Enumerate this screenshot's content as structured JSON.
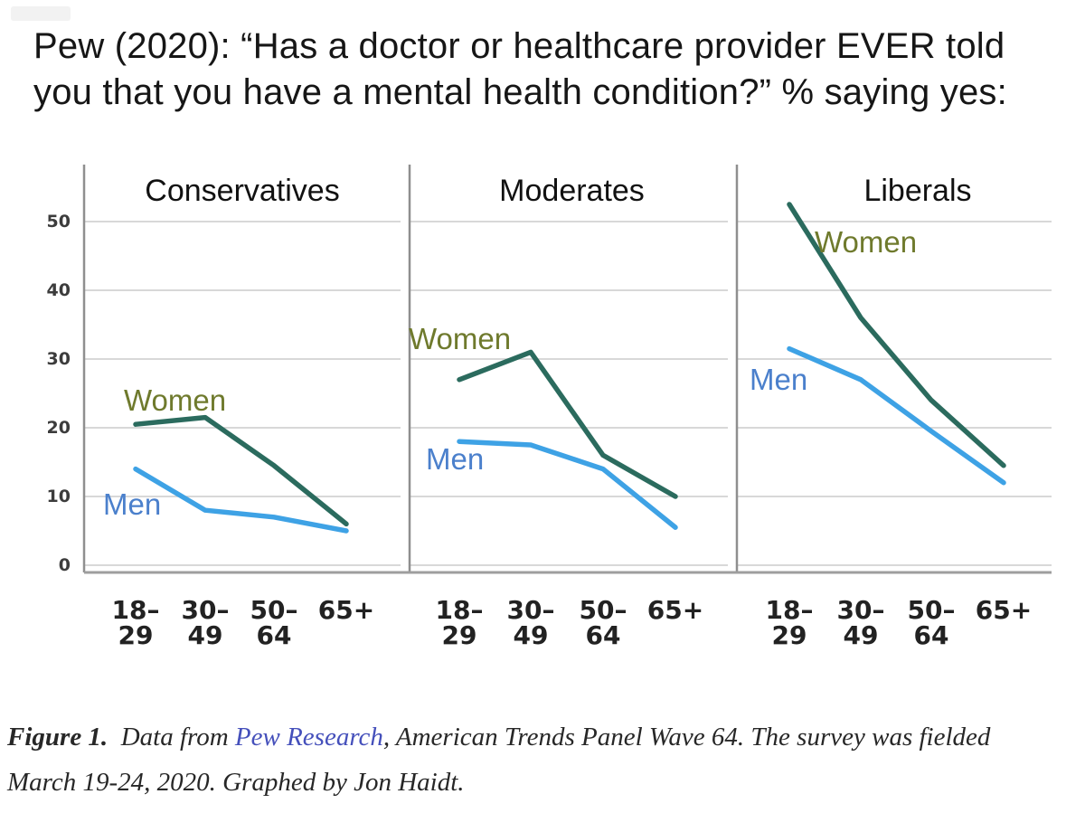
{
  "title": {
    "lines": [
      "Pew (2020): “Has a doctor or healthcare provider EVER told",
      "you that you have a mental health condition?” % saying yes:"
    ]
  },
  "chart_data": {
    "type": "line",
    "description": "% saying yes, by political group, gender and age",
    "categories": [
      "18–\n29",
      "30–\n49",
      "50–\n64",
      "65+"
    ],
    "yticks": [
      0,
      10,
      20,
      30,
      40,
      50
    ],
    "ylim": [
      0,
      55
    ],
    "grid": true,
    "legend_position": "inline-labels",
    "panels": [
      {
        "title": "Conservatives",
        "series": [
          {
            "name": "Women",
            "values": [
              20.5,
              21.5,
              14.5,
              6
            ]
          },
          {
            "name": "Men",
            "values": [
              14,
              8,
              7,
              5
            ]
          }
        ]
      },
      {
        "title": "Moderates",
        "series": [
          {
            "name": "Women",
            "values": [
              27,
              31,
              16,
              10
            ]
          },
          {
            "name": "Men",
            "values": [
              18,
              17.5,
              14,
              5.5
            ]
          }
        ]
      },
      {
        "title": "Liberals",
        "series": [
          {
            "name": "Women",
            "values": [
              52.5,
              36,
              24,
              14.5
            ]
          },
          {
            "name": "Men",
            "values": [
              31.5,
              27,
              19.5,
              12
            ]
          }
        ]
      }
    ],
    "colors": {
      "women_line": "#2b6b5e",
      "women_label": "#6f7a2d",
      "men_line": "#3ea2e5",
      "men_label": "#4b80cc",
      "gridline": "#cccccc",
      "axis": "#8f8f8f",
      "baseline": "#9e9e9e",
      "tick_text": "#222222"
    }
  },
  "caption": {
    "figure_label": "Figure 1.",
    "pre_link": "  Data from ",
    "link_text": "Pew Research",
    "post_link": ", American Trends Panel Wave 64. The survey was fielded",
    "line2": "March 19-24, 2020. Graphed by Jon Haidt."
  }
}
